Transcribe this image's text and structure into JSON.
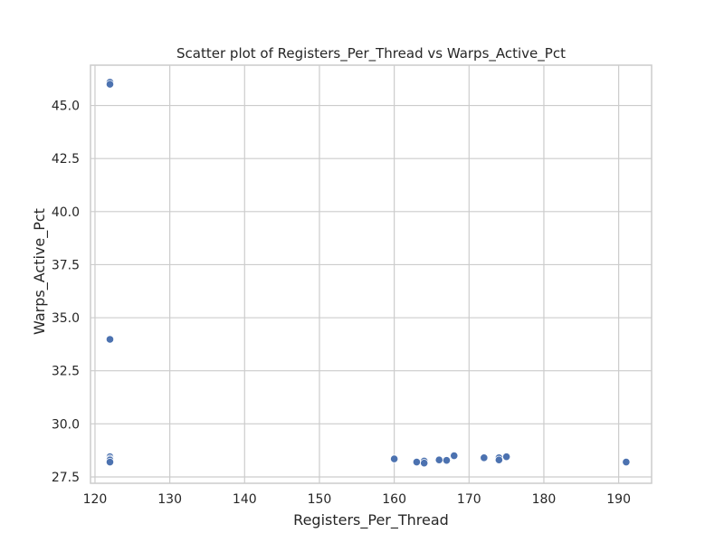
{
  "chart_data": {
    "type": "scatter",
    "title": "Scatter plot of Registers_Per_Thread vs Warps_Active_Pct",
    "xlabel": "Registers_Per_Thread",
    "ylabel": "Warps_Active_Pct",
    "xlim": [
      119.4,
      194.4
    ],
    "ylim": [
      27.2,
      46.9
    ],
    "xticks": [
      120,
      130,
      140,
      150,
      160,
      170,
      180,
      190
    ],
    "yticks": [
      27.5,
      30.0,
      32.5,
      35.0,
      37.5,
      40.0,
      42.5,
      45.0
    ],
    "ytick_labels": [
      "27.5",
      "30.0",
      "32.5",
      "35.0",
      "37.5",
      "40.0",
      "42.5",
      "45.0"
    ],
    "grid": true,
    "marker_color": "#4c72b0",
    "grid_color": "#cccccc",
    "points": [
      {
        "x": 122,
        "y": 46.1
      },
      {
        "x": 122,
        "y": 46.0
      },
      {
        "x": 122,
        "y": 34.0
      },
      {
        "x": 122,
        "y": 33.98
      },
      {
        "x": 122,
        "y": 28.45
      },
      {
        "x": 122,
        "y": 28.35
      },
      {
        "x": 122,
        "y": 28.3
      },
      {
        "x": 122,
        "y": 28.2
      },
      {
        "x": 160,
        "y": 28.35
      },
      {
        "x": 163,
        "y": 28.2
      },
      {
        "x": 164,
        "y": 28.25
      },
      {
        "x": 164,
        "y": 28.15
      },
      {
        "x": 166,
        "y": 28.3
      },
      {
        "x": 167,
        "y": 28.28
      },
      {
        "x": 168,
        "y": 28.5
      },
      {
        "x": 172,
        "y": 28.4
      },
      {
        "x": 174,
        "y": 28.4
      },
      {
        "x": 174,
        "y": 28.3
      },
      {
        "x": 175,
        "y": 28.45
      },
      {
        "x": 191,
        "y": 28.2
      }
    ]
  }
}
